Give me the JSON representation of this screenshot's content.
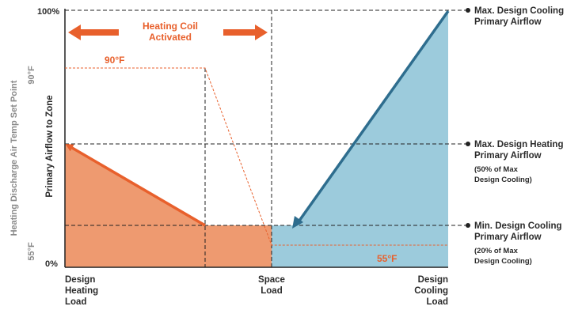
{
  "y_axis": {
    "top": "100%",
    "bottom": "0%"
  },
  "left_axis": {
    "label": "Heating Discharge Air Temp Set Point",
    "hi": "90°F",
    "lo": "55°F"
  },
  "primary_axis_label": "Primary Airflow to Zone",
  "x_axis": {
    "left": [
      "Design",
      "Heating",
      "Load"
    ],
    "middle": [
      "Space",
      "Load"
    ],
    "right": [
      "Design",
      "Cooling",
      "Load"
    ]
  },
  "heating_coil": {
    "line1": "Heating Coil",
    "line2": "Activated"
  },
  "temps": {
    "hot": "90°F",
    "cold": "55°F"
  },
  "right_labels": {
    "max_cooling": [
      "Max. Design Cooling",
      "Primary Airflow"
    ],
    "max_heating": [
      "Max. Design Heating",
      "Primary Airflow"
    ],
    "max_heating_note": [
      "(50% of Max",
      "Design Cooling)"
    ],
    "min_cooling": [
      "Min. Design Cooling",
      "Primary Airflow"
    ],
    "min_cooling_note": [
      "(20% of Max",
      "Design Cooling)"
    ]
  },
  "colors": {
    "heating_fill": "#ee9a70",
    "cooling_fill": "#9ccbdc",
    "heating_line": "#e8602c",
    "cooling_line": "#2e6d8e"
  }
}
